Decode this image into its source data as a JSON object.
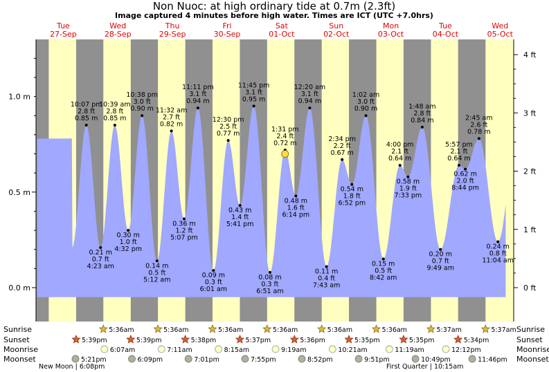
{
  "title": "Non Nuoc: at high  ordinary tide at 0.7m (2.3ft)",
  "subtitle": "Image captured 4 minutes before high water. Times are ICT (UTC +7.0hrs)",
  "chart_data": {
    "type": "area",
    "y_axis_left": {
      "unit": "m",
      "ticks": [
        "0.0 m",
        "0.5 m",
        "1.0 m"
      ],
      "tick_values": [
        0.0,
        0.5,
        1.0
      ],
      "range": [
        -0.05,
        1.28
      ]
    },
    "y_axis_right": {
      "unit": "ft",
      "ticks": [
        "0 ft",
        "1 ft",
        "2 ft",
        "3 ft",
        "4 ft"
      ],
      "tick_values": [
        0,
        1,
        2,
        3,
        4
      ]
    },
    "days": [
      {
        "name": "Tue",
        "date": "27-Sep"
      },
      {
        "name": "Wed",
        "date": "28-Sep"
      },
      {
        "name": "Thu",
        "date": "29-Sep"
      },
      {
        "name": "Fri",
        "date": "30-Sep"
      },
      {
        "name": "Sat",
        "date": "01-Oct"
      },
      {
        "name": "Sun",
        "date": "02-Oct"
      },
      {
        "name": "Mon",
        "date": "03-Oct"
      },
      {
        "name": "Tue",
        "date": "04-Oct"
      },
      {
        "name": "Wed",
        "date": "05-Oct"
      }
    ],
    "current": {
      "t": 109.5,
      "m": 0.7
    },
    "tides": [
      {
        "t": 22.12,
        "time": "10:07 pm",
        "ft": "2.8 ft",
        "m": "0.85 m",
        "v": 0.85,
        "type": "high"
      },
      {
        "t": 28.38,
        "time": "4:23 am",
        "ft": "0.7 ft",
        "m": "0.21 m",
        "v": 0.21,
        "type": "low"
      },
      {
        "t": 34.65,
        "time": "10:39 am",
        "ft": "2.8 ft",
        "m": "0.85 m",
        "v": 0.85,
        "type": "high"
      },
      {
        "t": 40.53,
        "time": "4:32 pm",
        "ft": "1.0 ft",
        "m": "0.30 m",
        "v": 0.3,
        "type": "low"
      },
      {
        "t": 46.63,
        "time": "10:38 pm",
        "ft": "3.0 ft",
        "m": "0.90 m",
        "v": 0.9,
        "type": "high"
      },
      {
        "t": 53.2,
        "time": "5:12 am",
        "ft": "0.5 ft",
        "m": "0.14 m",
        "v": 0.14,
        "type": "low"
      },
      {
        "t": 59.53,
        "time": "11:32 am",
        "ft": "2.7 ft",
        "m": "0.82 m",
        "v": 0.82,
        "type": "high"
      },
      {
        "t": 65.12,
        "time": "5:07 pm",
        "ft": "1.2 ft",
        "m": "0.36 m",
        "v": 0.36,
        "type": "low"
      },
      {
        "t": 71.18,
        "time": "11:11 pm",
        "ft": "3.1 ft",
        "m": "0.94 m",
        "v": 0.94,
        "type": "high"
      },
      {
        "t": 78.02,
        "time": "6:01 am",
        "ft": "0.3 ft",
        "m": "0.09 m",
        "v": 0.09,
        "type": "low"
      },
      {
        "t": 84.5,
        "time": "12:30 pm",
        "ft": "2.5 ft",
        "m": "0.77 m",
        "v": 0.77,
        "type": "high"
      },
      {
        "t": 89.68,
        "time": "5:41 pm",
        "ft": "1.4 ft",
        "m": "0.43 m",
        "v": 0.43,
        "type": "low"
      },
      {
        "t": 95.75,
        "time": "11:45 pm",
        "ft": "3.1 ft",
        "m": "0.95 m",
        "v": 0.95,
        "type": "high"
      },
      {
        "t": 102.85,
        "time": "6:51 am",
        "ft": "0.3 ft",
        "m": "0.08 m",
        "v": 0.08,
        "type": "low"
      },
      {
        "t": 109.52,
        "time": "1:31 pm",
        "ft": "2.4 ft",
        "m": "0.72 m",
        "v": 0.72,
        "type": "high"
      },
      {
        "t": 114.23,
        "time": "6:14 pm",
        "ft": "1.6 ft",
        "m": "0.48 m",
        "v": 0.48,
        "type": "low"
      },
      {
        "t": 120.33,
        "time": "12:20 am",
        "ft": "3.1 ft",
        "m": "0.94 m",
        "v": 0.94,
        "type": "high"
      },
      {
        "t": 127.72,
        "time": "7:43 am",
        "ft": "0.4 ft",
        "m": "0.11 m",
        "v": 0.11,
        "type": "low"
      },
      {
        "t": 134.57,
        "time": "2:34 pm",
        "ft": "2.2 ft",
        "m": "0.67 m",
        "v": 0.67,
        "type": "high"
      },
      {
        "t": 138.87,
        "time": "6:52 pm",
        "ft": "1.8 ft",
        "m": "0.54 m",
        "v": 0.54,
        "type": "low"
      },
      {
        "t": 145.03,
        "time": "1:02 am",
        "ft": "3.0 ft",
        "m": "0.90 m",
        "v": 0.9,
        "type": "high"
      },
      {
        "t": 152.7,
        "time": "8:42 am",
        "ft": "0.5 ft",
        "m": "0.15 m",
        "v": 0.15,
        "type": "low"
      },
      {
        "t": 160.0,
        "time": "4:00 pm",
        "ft": "2.1 ft",
        "m": "0.64 m",
        "v": 0.64,
        "type": "high"
      },
      {
        "t": 163.55,
        "time": "7:33 pm",
        "ft": "1.9 ft",
        "m": "0.58 m",
        "v": 0.58,
        "type": "low"
      },
      {
        "t": 169.8,
        "time": "1:48 am",
        "ft": "2.8 ft",
        "m": "0.84 m",
        "v": 0.84,
        "type": "high"
      },
      {
        "t": 177.82,
        "time": "9:49 am",
        "ft": "0.7 ft",
        "m": "0.20 m",
        "v": 0.2,
        "type": "low"
      },
      {
        "t": 185.95,
        "time": "5:57 pm",
        "ft": "2.1 ft",
        "m": "0.64 m",
        "v": 0.64,
        "type": "high"
      },
      {
        "t": 188.73,
        "time": "8:44 pm",
        "ft": "2.0 ft",
        "m": "0.62 m",
        "v": 0.62,
        "type": "low"
      },
      {
        "t": 194.75,
        "time": "2:45 am",
        "ft": "2.6 ft",
        "m": "0.78 m",
        "v": 0.78,
        "type": "high"
      },
      {
        "t": 203.07,
        "time": "11:04 am",
        "ft": "0.8 ft",
        "m": "0.24 m",
        "v": 0.24,
        "type": "low"
      }
    ],
    "night_bands": [
      [
        0,
        5.6
      ],
      [
        17.65,
        29.6
      ],
      [
        41.65,
        53.6
      ],
      [
        65.63,
        77.6
      ],
      [
        89.62,
        101.6
      ],
      [
        113.6,
        125.6
      ],
      [
        137.58,
        149.6
      ],
      [
        161.58,
        173.62
      ],
      [
        185.57,
        197.62
      ]
    ],
    "colors": {
      "day": "#ffffc0",
      "night": "#909090",
      "water": "#a0a8ff",
      "current": "#ffdd44"
    }
  },
  "rows": {
    "sunrise": {
      "label": "Sunrise",
      "events": [
        {
          "t": 29.6,
          "text": "5:36am"
        },
        {
          "t": 53.6,
          "text": "5:36am"
        },
        {
          "t": 77.6,
          "text": "5:36am"
        },
        {
          "t": 101.6,
          "text": "5:36am"
        },
        {
          "t": 125.6,
          "text": "5:36am"
        },
        {
          "t": 149.6,
          "text": "5:36am"
        },
        {
          "t": 173.62,
          "text": "5:37am"
        },
        {
          "t": 197.62,
          "text": "5:37am"
        }
      ]
    },
    "sunset": {
      "label": "Sunset",
      "events": [
        {
          "t": 17.65,
          "text": "5:39pm"
        },
        {
          "t": 41.65,
          "text": "5:39pm"
        },
        {
          "t": 65.63,
          "text": "5:38pm"
        },
        {
          "t": 89.62,
          "text": "5:37pm"
        },
        {
          "t": 113.6,
          "text": "5:36pm"
        },
        {
          "t": 137.58,
          "text": "5:35pm"
        },
        {
          "t": 161.58,
          "text": "5:35pm"
        },
        {
          "t": 185.57,
          "text": "5:34pm"
        }
      ]
    },
    "moonrise": {
      "label": "Moonrise",
      "events": [
        {
          "t": 30.1,
          "text": "6:07am"
        },
        {
          "t": 55.18,
          "text": "7:11am"
        },
        {
          "t": 80.25,
          "text": "8:15am"
        },
        {
          "t": 105.32,
          "text": "9:19am"
        },
        {
          "t": 130.35,
          "text": "10:21am"
        },
        {
          "t": 155.32,
          "text": "11:19am"
        },
        {
          "t": 180.2,
          "text": "12:12pm"
        }
      ]
    },
    "moonset": {
      "label": "Moonset",
      "events": [
        {
          "t": 17.35,
          "text": "5:21pm"
        },
        {
          "t": 42.15,
          "text": "6:09pm"
        },
        {
          "t": 67.02,
          "text": "7:01pm"
        },
        {
          "t": 91.92,
          "text": "7:55pm"
        },
        {
          "t": 116.87,
          "text": "8:52pm"
        },
        {
          "t": 141.85,
          "text": "9:51pm"
        },
        {
          "t": 166.82,
          "text": "10:49pm"
        },
        {
          "t": 191.77,
          "text": "11:46pm"
        }
      ]
    }
  },
  "moon_phases": [
    "New Moon | 6:08pm",
    "First Quarter | 10:15am"
  ]
}
